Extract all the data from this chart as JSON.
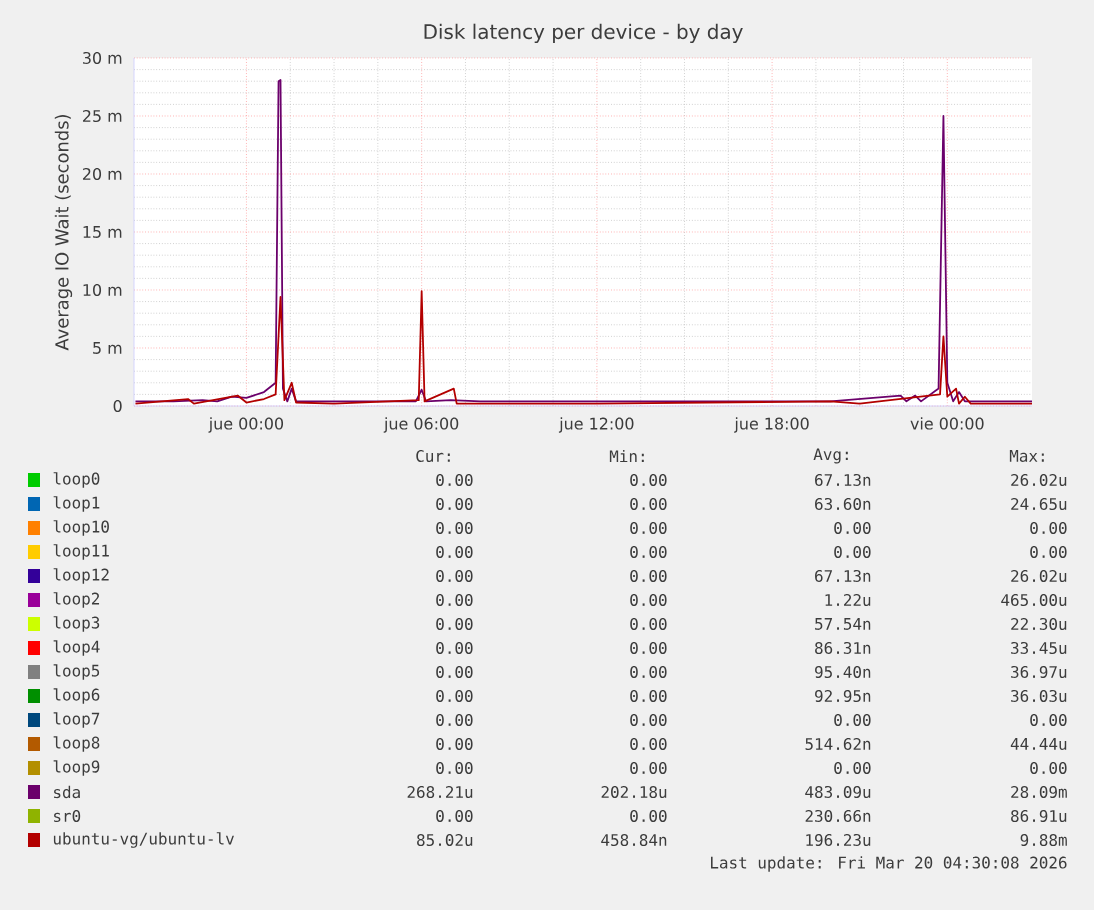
{
  "chart_data": {
    "type": "line",
    "title": "Disk latency per device - by day",
    "ylabel": "Average IO Wait (seconds)",
    "xlim": [
      "2026-03-18T20:09",
      "2026-03-20T02:54"
    ],
    "xticks": [
      {
        "value": "2026-03-19T00:00",
        "label": "jue 00:00"
      },
      {
        "value": "2026-03-19T06:00",
        "label": "jue 06:00"
      },
      {
        "value": "2026-03-19T12:00",
        "label": "jue 12:00"
      },
      {
        "value": "2026-03-19T18:00",
        "label": "jue 18:00"
      },
      {
        "value": "2026-03-20T00:00",
        "label": "vie 00:00"
      }
    ],
    "ylim": [
      0,
      30
    ],
    "yticks": [
      0,
      {
        "value": 5,
        "label": "5 m"
      },
      {
        "value": 10,
        "label": "10 m"
      },
      {
        "value": 15,
        "label": "15 m"
      },
      {
        "value": 20,
        "label": "20 m"
      },
      {
        "value": 25,
        "label": "25 m"
      },
      {
        "value": 30,
        "label": "30 m"
      }
    ],
    "grid": true,
    "legend": "bottom",
    "series": [
      {
        "name": "loop0",
        "color": "#00cc00"
      },
      {
        "name": "loop1",
        "color": "#0066b3"
      },
      {
        "name": "loop10",
        "color": "#ff8000"
      },
      {
        "name": "loop11",
        "color": "#ffcc00"
      },
      {
        "name": "loop12",
        "color": "#330099"
      },
      {
        "name": "loop2",
        "color": "#990099"
      },
      {
        "name": "loop3",
        "color": "#ccff00"
      },
      {
        "name": "loop4",
        "color": "#ff0000"
      },
      {
        "name": "loop5",
        "color": "#808080"
      },
      {
        "name": "loop6",
        "color": "#008f00"
      },
      {
        "name": "loop7",
        "color": "#00487d"
      },
      {
        "name": "loop8",
        "color": "#b35a00"
      },
      {
        "name": "loop9",
        "color": "#b38f00"
      },
      {
        "name": "sda",
        "color": "#6b006b",
        "x": [
          "2026-03-18T20:12",
          "2026-03-18T21:30",
          "2026-03-18T22:30",
          "2026-03-18T23:00",
          "2026-03-18T23:30",
          "2026-03-19T00:00",
          "2026-03-19T00:36",
          "2026-03-19T01:00",
          "2026-03-19T01:06",
          "2026-03-19T01:10",
          "2026-03-19T01:15",
          "2026-03-19T01:24",
          "2026-03-19T01:33",
          "2026-03-19T01:42",
          "2026-03-19T03:00",
          "2026-03-19T05:48",
          "2026-03-19T06:00",
          "2026-03-19T06:09",
          "2026-03-19T07:00",
          "2026-03-19T08:00",
          "2026-03-19T12:00",
          "2026-03-19T16:00",
          "2026-03-19T20:00",
          "2026-03-19T22:24",
          "2026-03-19T22:36",
          "2026-03-19T22:54",
          "2026-03-19T23:06",
          "2026-03-19T23:42",
          "2026-03-19T23:52",
          "2026-03-20T00:00",
          "2026-03-20T00:12",
          "2026-03-20T00:24",
          "2026-03-20T00:36",
          "2026-03-20T02:54"
        ],
        "values": [
          0.4,
          0.4,
          0.5,
          0.4,
          0.8,
          0.7,
          1.2,
          2,
          28,
          28.1,
          1.5,
          0.4,
          1.5,
          0.4,
          0.4,
          0.4,
          1.4,
          0.4,
          0.5,
          0.4,
          0.4,
          0.4,
          0.4,
          0.9,
          0.4,
          0.9,
          0.4,
          1.5,
          25,
          2,
          0.4,
          1.2,
          0.4,
          0.4
        ]
      },
      {
        "name": "sr0",
        "color": "#8fb300"
      },
      {
        "name": "ubuntu-vg/ubuntu-lv",
        "color": "#b30000",
        "x": [
          "2026-03-18T20:12",
          "2026-03-18T22:00",
          "2026-03-18T22:12",
          "2026-03-18T23:42",
          "2026-03-19T00:00",
          "2026-03-19T00:36",
          "2026-03-19T01:00",
          "2026-03-19T01:10",
          "2026-03-19T01:18",
          "2026-03-19T01:33",
          "2026-03-19T01:42",
          "2026-03-19T03:00",
          "2026-03-19T05:54",
          "2026-03-19T06:00",
          "2026-03-19T06:06",
          "2026-03-19T07:06",
          "2026-03-19T07:12",
          "2026-03-19T12:00",
          "2026-03-19T20:00",
          "2026-03-19T21:00",
          "2026-03-19T23:45",
          "2026-03-19T23:52",
          "2026-03-20T00:00",
          "2026-03-20T00:18",
          "2026-03-20T00:24",
          "2026-03-20T00:36",
          "2026-03-20T00:48",
          "2026-03-20T02:54"
        ],
        "values": [
          0.2,
          0.6,
          0.2,
          0.9,
          0.3,
          0.6,
          1,
          9.4,
          0.5,
          2,
          0.3,
          0.2,
          0.5,
          9.9,
          0.4,
          1.5,
          0.2,
          0.2,
          0.4,
          0.2,
          1,
          6,
          0.8,
          1.5,
          0.2,
          0.8,
          0.2,
          0.2
        ]
      }
    ],
    "annotations": [
      "Cur:",
      "Min:",
      "Avg:",
      "Max:",
      "0.00",
      "0.00",
      "67.13n",
      "26.02u",
      "0.00",
      "0.00",
      "63.60n",
      "24.65u",
      "0.00",
      "0.00",
      "0.00",
      "0.00",
      "0.00",
      "0.00",
      "0.00",
      "0.00",
      "0.00",
      "0.00",
      "67.13n",
      "26.02u",
      "0.00",
      "0.00",
      "1.22u",
      "465.00u",
      "0.00",
      "0.00",
      "57.54n",
      "22.30u",
      "0.00",
      "0.00",
      "86.31n",
      "33.45u",
      "0.00",
      "0.00",
      "95.40n",
      "36.97u",
      "0.00",
      "0.00",
      "92.95n",
      "36.03u",
      "0.00",
      "0.00",
      "0.00",
      "0.00",
      "0.00",
      "0.00",
      "514.62n",
      "44.44u",
      "0.00",
      "0.00",
      "0.00",
      "0.00",
      "268.21u",
      "202.18u",
      "483.09u",
      "28.09m",
      "0.00",
      "0.00",
      "230.66n",
      "86.91u",
      "85.02u",
      "458.84n",
      "196.23u",
      "9.88m",
      "Last update: Fri Mar 20 04:30:08 2026"
    ]
  }
}
